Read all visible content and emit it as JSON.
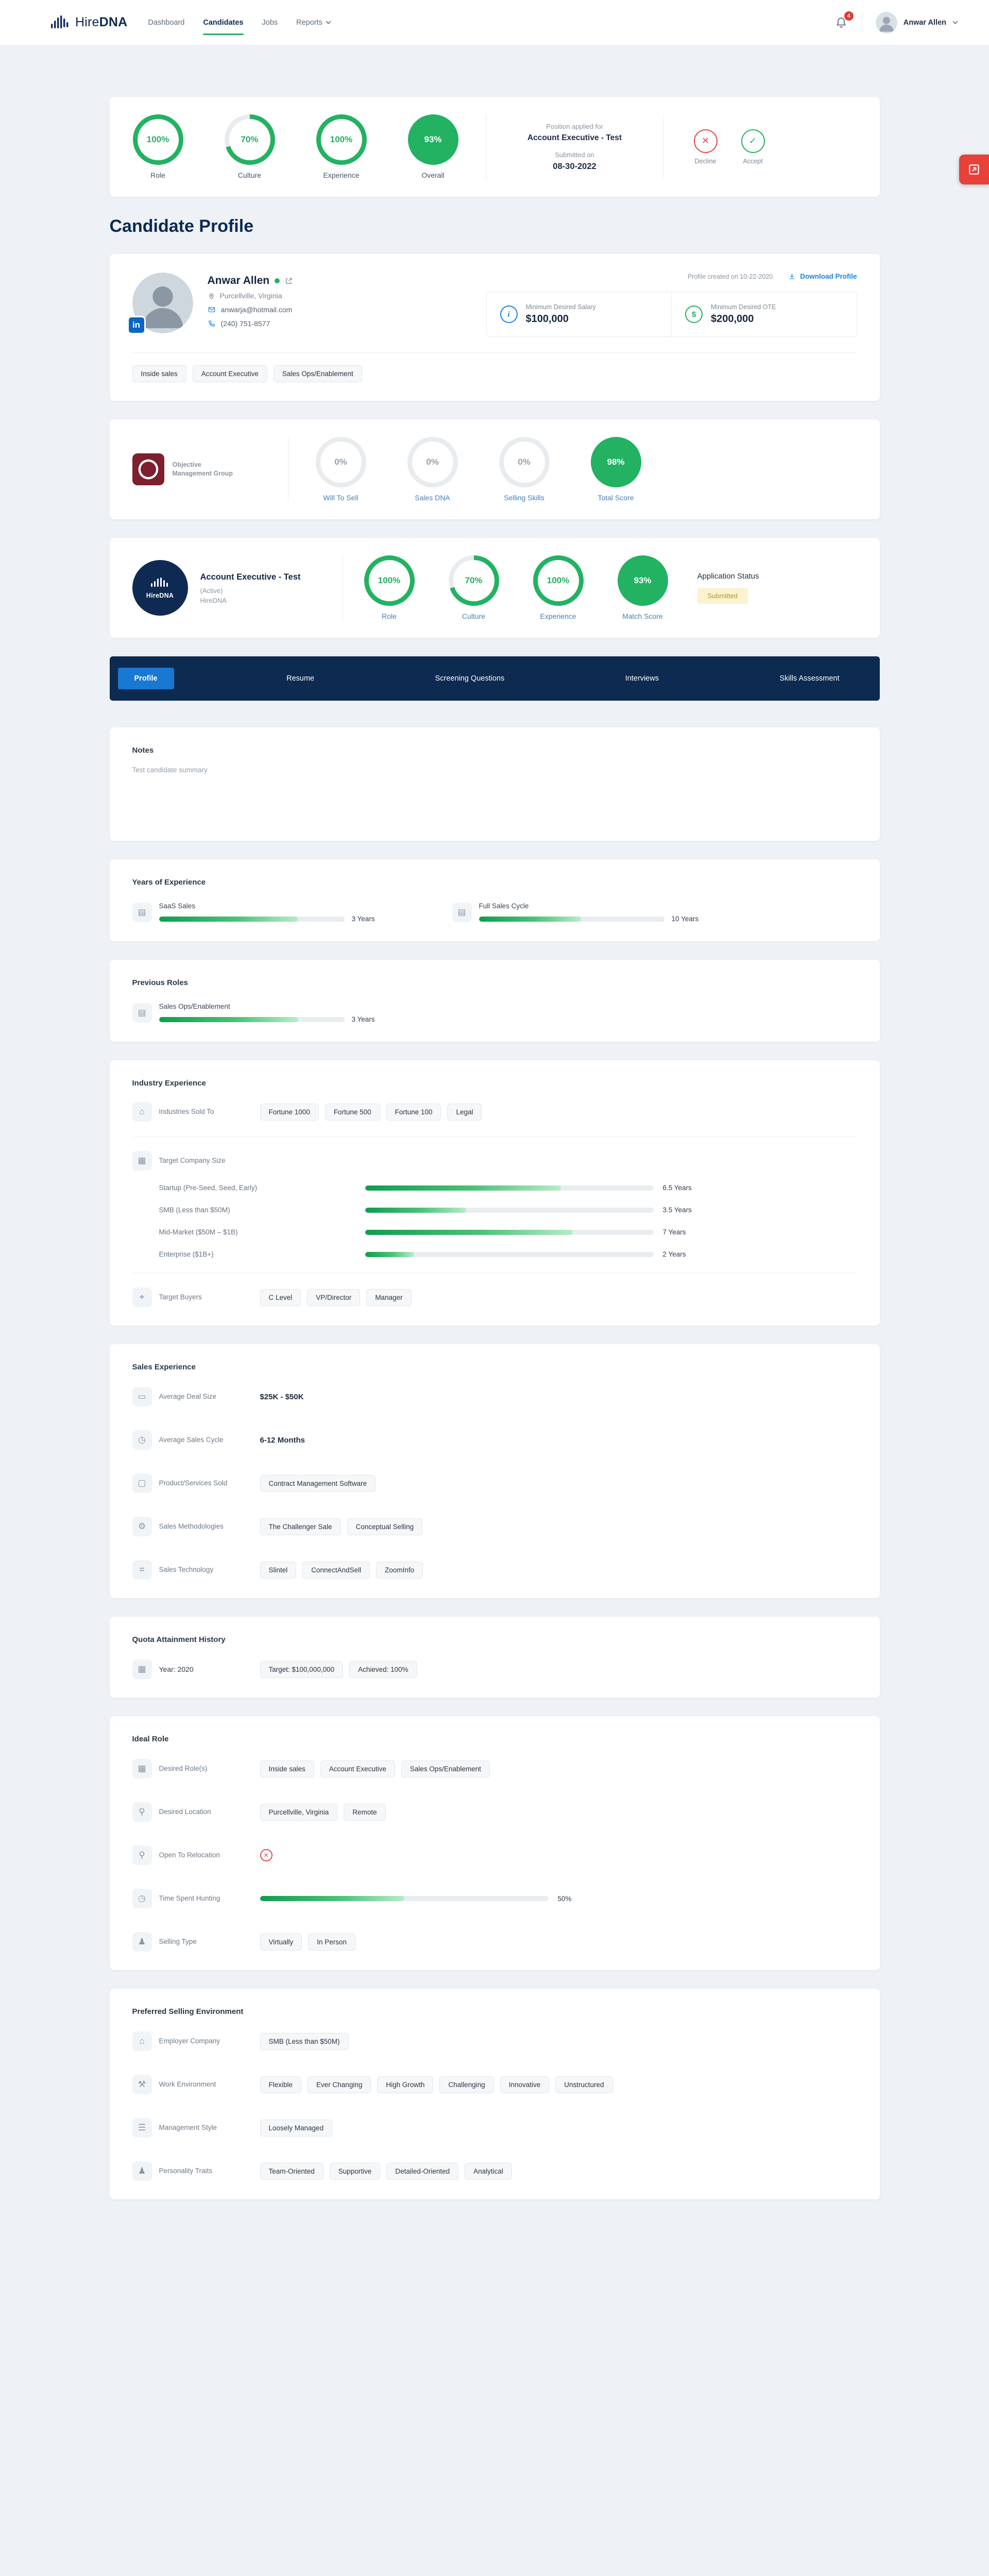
{
  "nav": {
    "brand_a": "Hire",
    "brand_b": "DNA",
    "items": [
      {
        "label": "Dashboard"
      },
      {
        "label": "Candidates"
      },
      {
        "label": "Jobs"
      },
      {
        "label": "Reports"
      }
    ],
    "notification_count": "4",
    "user_name": "Anwar Allen"
  },
  "summary": {
    "scores": [
      {
        "pct": 100,
        "text": "100%",
        "label": "Role"
      },
      {
        "pct": 70,
        "text": "70%",
        "label": "Culture"
      },
      {
        "pct": 100,
        "text": "100%",
        "label": "Experience"
      },
      {
        "pct": 93,
        "text": "93%",
        "label": "Overall"
      }
    ],
    "position_label": "Position applied for",
    "position_value": "Account Executive - Test",
    "submitted_label": "Submitted on",
    "submitted_value": "08-30-2022",
    "decline_label": "Decline",
    "accept_label": "Accept"
  },
  "page_title": "Candidate Profile",
  "profile": {
    "name": "Anwar Allen",
    "location": "Purcellville, Virginia",
    "email": "anwarja@hotmail.com",
    "phone": "(240) 751-8577",
    "created_text": "Profile created on 10-22-2020",
    "download_label": "Download Profile",
    "salary_label": "Minimum Desired Salary",
    "salary_value": "$100,000",
    "ote_label": "Minimum Desired OTE",
    "ote_value": "$200,000",
    "tags": [
      "Inside sales",
      "Account Executive",
      "Sales Ops/Enablement"
    ]
  },
  "omg": {
    "logo_text": "Objective Management Group",
    "scores": [
      {
        "pct": 0,
        "text": "0%",
        "label": "Will To Sell"
      },
      {
        "pct": 0,
        "text": "0%",
        "label": "Sales DNA"
      },
      {
        "pct": 0,
        "text": "0%",
        "label": "Selling Skills"
      },
      {
        "pct": 98,
        "text": "98%",
        "label": "Total Score"
      }
    ]
  },
  "application": {
    "logo_text": "HireDNA",
    "title": "Account Executive - Test",
    "state": "(Active)",
    "company": "HireDNA",
    "scores": [
      {
        "pct": 100,
        "text": "100%",
        "label": "Role"
      },
      {
        "pct": 70,
        "text": "70%",
        "label": "Culture"
      },
      {
        "pct": 100,
        "text": "100%",
        "label": "Experience"
      },
      {
        "pct": 93,
        "text": "93%",
        "label": "Match Score"
      }
    ],
    "status_label": "Application Status",
    "status_value": "Submitted"
  },
  "tabs": {
    "items": [
      {
        "label": "Profile"
      },
      {
        "label": "Resume"
      },
      {
        "label": "Screening Questions"
      },
      {
        "label": "Interviews"
      },
      {
        "label": "Skills Assessment"
      }
    ],
    "active": "Profile"
  },
  "notes": {
    "title": "Notes",
    "content": "Test candidate summary"
  },
  "years_experience": {
    "title": "Years of Experience",
    "items": [
      {
        "label": "SaaS Sales",
        "value": "3 Years",
        "fill": 75
      },
      {
        "label": "Full Sales Cycle",
        "value": "10 Years",
        "fill": 55
      }
    ]
  },
  "previous_roles": {
    "title": "Previous Roles",
    "items": [
      {
        "label": "Sales Ops/Enablement",
        "value": "3 Years",
        "fill": 75
      }
    ]
  },
  "industry": {
    "title": "Industry Experience",
    "industries_label": "Industries Sold To",
    "industries": [
      "Fortune 1000",
      "Fortune 500",
      "Fortune 100",
      "Legal"
    ],
    "company_size_label": "Target Company Size",
    "company_sizes": [
      {
        "label": "Startup (Pre-Seed, Seed, Early)",
        "value": "6.5 Years",
        "fill": 68
      },
      {
        "label": "SMB (Less than $50M)",
        "value": "3.5 Years",
        "fill": 35
      },
      {
        "label": "Mid-Market ($50M – $1B)",
        "value": "7 Years",
        "fill": 72
      },
      {
        "label": "Enterprise ($1B+)",
        "value": "2 Years",
        "fill": 17
      }
    ],
    "buyers_label": "Target Buyers",
    "buyers": [
      "C Level",
      "VP/Director",
      "Manager"
    ]
  },
  "sales_experience": {
    "title": "Sales Experience",
    "deal_size_label": "Average Deal Size",
    "deal_size_value": "$25K - $50K",
    "cycle_label": "Average Sales Cycle",
    "cycle_value": "6-12 Months",
    "products_label": "Product/Services Sold",
    "products": [
      "Contract Management Software"
    ],
    "methodologies_label": "Sales Methodologies",
    "methodologies": [
      "The Challenger Sale",
      "Conceptual Selling"
    ],
    "technology_label": "Sales Technology",
    "technology": [
      "Slintel",
      "ConnectAndSell",
      "ZoomInfo"
    ]
  },
  "quota": {
    "title": "Quota Attainment History",
    "year_label": "Year: 2020",
    "items": [
      "Target: $100,000,000",
      "Achieved: 100%"
    ]
  },
  "ideal_role": {
    "title": "Ideal Role",
    "roles_label": "Desired Role(s)",
    "roles": [
      "Inside sales",
      "Account Executive",
      "Sales Ops/Enablement"
    ],
    "location_label": "Desired Location",
    "locations": [
      "Purcellville, Virginia",
      "Remote"
    ],
    "relocation_label": "Open To Relocation",
    "hunting_label": "Time Spent Hunting",
    "hunting_value": "50%",
    "hunting_fill": 50,
    "selling_type_label": "Selling Type",
    "selling_types": [
      "Virtually",
      "In Person"
    ]
  },
  "environment": {
    "title": "Preferred Selling Environment",
    "employer_label": "Employer Company",
    "employers": [
      "SMB (Less than $50M)"
    ],
    "work_label": "Work Environment",
    "work": [
      "Flexible",
      "Ever Changing",
      "High Growth",
      "Challenging",
      "Innovative",
      "Unstructured"
    ],
    "management_label": "Management Style",
    "management": [
      "Loosely Managed"
    ],
    "traits_label": "Personality Traits",
    "traits": [
      "Team-Oriented",
      "Supportive",
      "Detailed-Oriented",
      "Analytical"
    ]
  },
  "icons": {
    "chart_rows": "▤",
    "building": "⌂",
    "briefcase": "▦",
    "target": "⌖",
    "money": "▭",
    "clock": "◷",
    "monitor": "▢",
    "gear": "⚙",
    "chip": "⌗",
    "calendar": "▦",
    "pin": "⚲",
    "person": "♟",
    "tools": "⚒",
    "sliders": "☰"
  }
}
